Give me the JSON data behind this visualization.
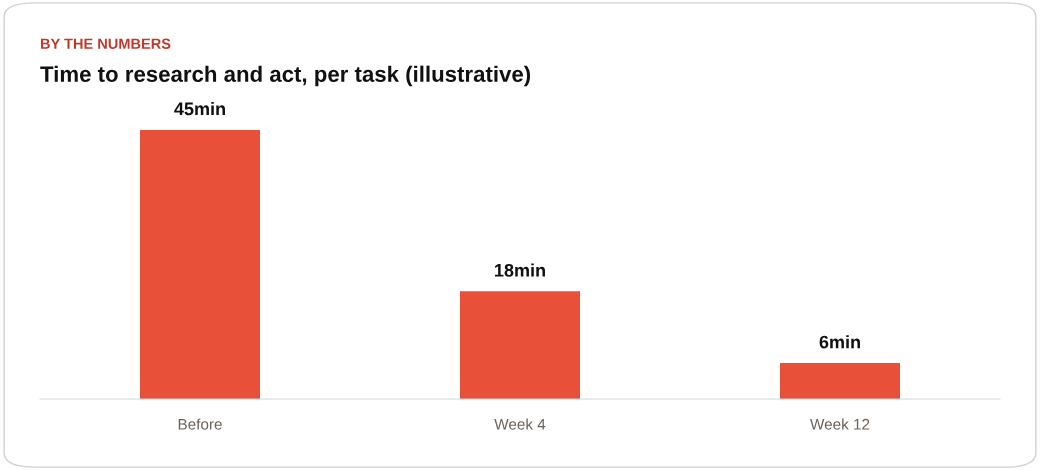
{
  "chart_data": {
    "type": "bar",
    "subtitle": "BY THE NUMBERS",
    "title": "Time to research and act, per task (illustrative)",
    "categories": [
      "Before",
      "Week 4",
      "Week 12"
    ],
    "values": [
      45,
      18,
      6
    ],
    "value_labels": [
      "45min",
      "18min",
      "6min"
    ],
    "color": "#e8503a"
  }
}
